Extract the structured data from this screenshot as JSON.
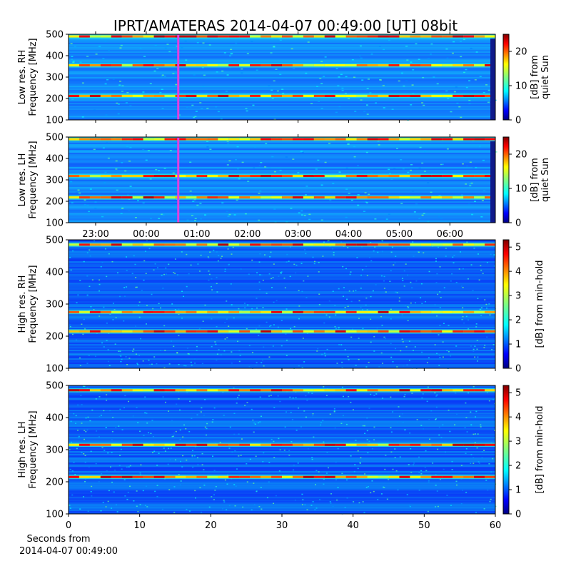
{
  "chart_data": {
    "type": "heatmap",
    "title": "IPRT/AMATERAS 2014-04-07 00:49:00 [UT]   08bit",
    "colormap": "jet",
    "panels": [
      {
        "ylabel": [
          "Low res. RH",
          "Frequency [MHz]"
        ],
        "ylim": [
          100,
          500
        ],
        "yticks": [
          100,
          200,
          300,
          400,
          500
        ],
        "xaxis": "UT time",
        "xtick_labels": [
          "23:00",
          "00:00",
          "01:00",
          "02:00",
          "03:00",
          "04:00",
          "05:00",
          "06:00"
        ],
        "marker_time": "00:49",
        "bright_bands_mhz": [
          212,
          355,
          490
        ],
        "colorbar": {
          "label": [
            "[dB] from",
            "quiet Sun"
          ],
          "range": [
            0,
            25
          ],
          "ticks": [
            0,
            10,
            20
          ]
        }
      },
      {
        "ylabel": [
          "Low res. LH",
          "Frequency [MHz]"
        ],
        "ylim": [
          100,
          500
        ],
        "yticks": [
          100,
          200,
          300,
          400,
          500
        ],
        "xaxis": "UT time",
        "xtick_labels": [
          "23:00",
          "00:00",
          "01:00",
          "02:00",
          "03:00",
          "04:00",
          "05:00",
          "06:00"
        ],
        "marker_time": "00:49",
        "bright_bands_mhz": [
          218,
          318,
          490
        ],
        "colorbar": {
          "label": [
            "[dB] from",
            "quiet Sun"
          ],
          "range": [
            0,
            25
          ],
          "ticks": [
            0,
            10,
            20
          ]
        }
      },
      {
        "ylabel": [
          "High res. RH",
          "Frequency [MHz]"
        ],
        "ylim": [
          100,
          500
        ],
        "yticks": [
          100,
          200,
          300,
          400,
          500
        ],
        "xaxis": "Seconds",
        "xlim": [
          0,
          60
        ],
        "bright_bands_mhz": [
          215,
          275,
          485
        ],
        "colorbar": {
          "label": [
            "[dB] from min-hold"
          ],
          "range": [
            0,
            5.3
          ],
          "ticks": [
            0,
            1,
            2,
            3,
            4,
            5
          ]
        }
      },
      {
        "ylabel": [
          "High res. LH",
          "Frequency [MHz]"
        ],
        "ylim": [
          100,
          500
        ],
        "yticks": [
          100,
          200,
          300,
          400,
          500
        ],
        "xaxis": "Seconds",
        "xlim": [
          0,
          60
        ],
        "xticks": [
          0,
          10,
          20,
          30,
          40,
          50,
          60
        ],
        "bright_bands_mhz": [
          215,
          315,
          485
        ],
        "colorbar": {
          "label": [
            "[dB] from min-hold"
          ],
          "range": [
            0,
            5.3
          ],
          "ticks": [
            0,
            1,
            2,
            3,
            4,
            5
          ]
        }
      }
    ],
    "xlabel": [
      "Seconds from",
      "2014-04-07 00:49:00"
    ]
  }
}
